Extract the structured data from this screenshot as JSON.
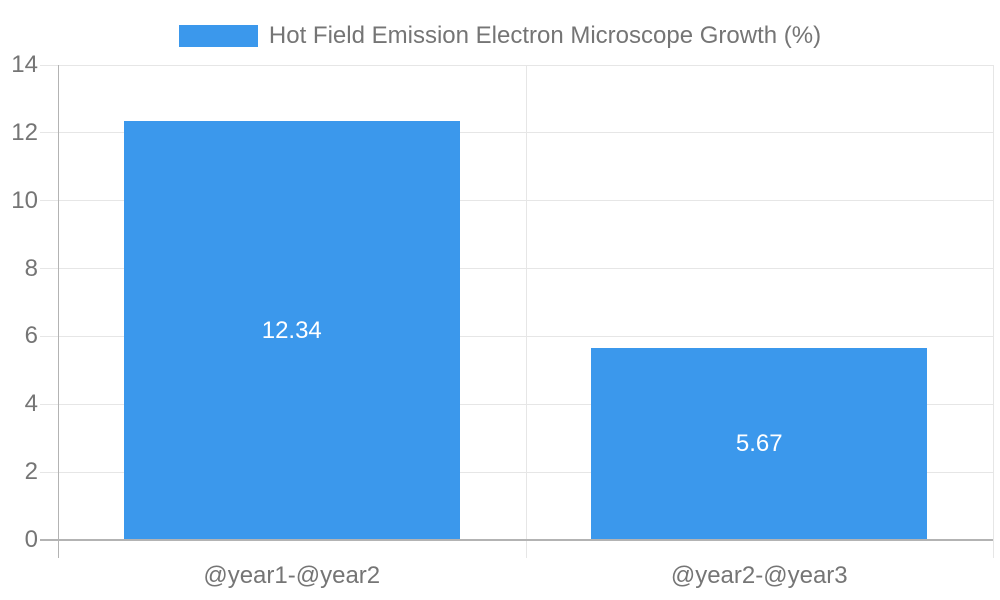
{
  "legend": {
    "label": "Hot Field Emission Electron Microscope Growth (%)"
  },
  "chart_data": {
    "type": "bar",
    "title": "Hot Field Emission Electron Microscope Growth (%)",
    "categories": [
      "@year1-@year2",
      "@year2-@year3"
    ],
    "values": [
      12.34,
      5.67
    ],
    "value_labels": [
      "12.34",
      "5.67"
    ],
    "xlabel": "",
    "ylabel": "",
    "ylim": [
      0,
      14
    ],
    "yticks": [
      0,
      2,
      4,
      6,
      8,
      10,
      12,
      14
    ],
    "grid": true,
    "legend_position": "top-center",
    "colors": {
      "bar": "#3b98ec",
      "bar_value_label": "#ffffff",
      "axis_text": "#757575",
      "gridline": "#e6e6e6",
      "axis_line": "#b3b3b3",
      "background": "#ffffff"
    }
  }
}
